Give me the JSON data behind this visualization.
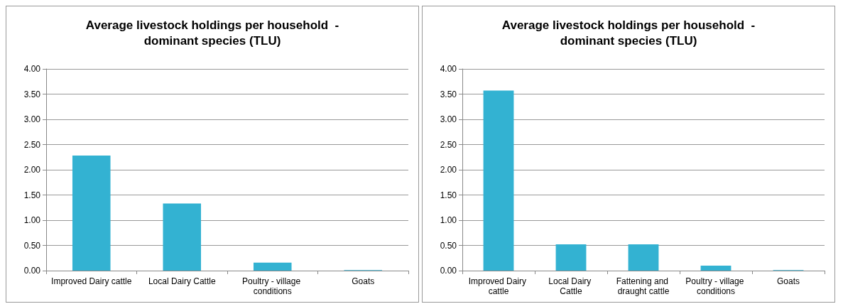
{
  "chart_data": [
    {
      "type": "bar",
      "title": "Average livestock holdings per household  -\ndominant species (TLU)",
      "categories": [
        "Improved Dairy cattle",
        "Local Dairy Cattle",
        "Poultry - village conditions",
        "Goats"
      ],
      "values": [
        2.28,
        1.33,
        0.16,
        0.01
      ],
      "color": "#33b2d2",
      "ylim": [
        0,
        4
      ],
      "yticks": [
        {
          "value": 0,
          "label": "0.00"
        },
        {
          "value": 0.5,
          "label": "0.50"
        },
        {
          "value": 1,
          "label": "1.00"
        },
        {
          "value": 1.5,
          "label": "1.50"
        },
        {
          "value": 2,
          "label": "2.00"
        },
        {
          "value": 2.5,
          "label": "2.50"
        },
        {
          "value": 3,
          "label": "3.00"
        },
        {
          "value": 3.5,
          "label": "3.50"
        },
        {
          "value": 4,
          "label": "4.00"
        }
      ],
      "grid": "y"
    },
    {
      "type": "bar",
      "title": "Average livestock holdings per household  -\ndominant species (TLU)",
      "categories": [
        "Improved Dairy cattle",
        "Local Dairy Cattle",
        "Fattening and draught cattle",
        "Poultry - village conditions",
        "Goats"
      ],
      "values": [
        3.57,
        0.52,
        0.52,
        0.1,
        0.01
      ],
      "color": "#33b2d2",
      "ylim": [
        0,
        4
      ],
      "yticks": [
        {
          "value": 0,
          "label": "0.00"
        },
        {
          "value": 0.5,
          "label": "0.50"
        },
        {
          "value": 1,
          "label": "1.00"
        },
        {
          "value": 1.5,
          "label": "1.50"
        },
        {
          "value": 2,
          "label": "2.00"
        },
        {
          "value": 2.5,
          "label": "2.50"
        },
        {
          "value": 3,
          "label": "3.00"
        },
        {
          "value": 3.5,
          "label": "3.50"
        },
        {
          "value": 4,
          "label": "4.00"
        }
      ],
      "grid": "y"
    }
  ]
}
